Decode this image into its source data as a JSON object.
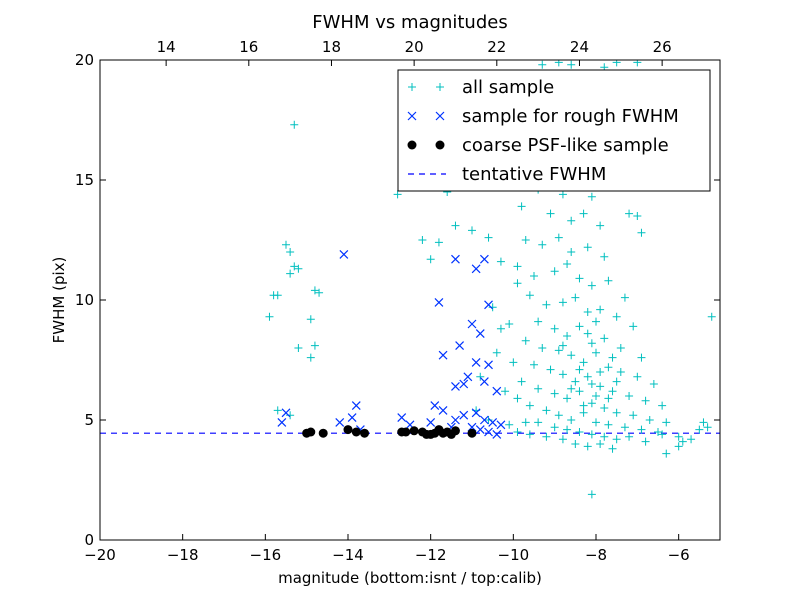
{
  "chart_data": {
    "type": "scatter",
    "title": "FWHM vs magnitudes",
    "xlabel": "magnitude (bottom:isnt / top:calib)",
    "ylabel": "FWHM (pix)",
    "xlim": [
      -20,
      -5
    ],
    "ylim": [
      0,
      20
    ],
    "top_xlim": [
      12.4,
      27.4
    ],
    "x_ticks": [
      -20,
      -18,
      -16,
      -14,
      -12,
      -10,
      -8,
      -6
    ],
    "y_ticks": [
      0,
      5,
      10,
      15,
      20
    ],
    "top_x_ticks": [
      14,
      16,
      18,
      20,
      22,
      24,
      26
    ],
    "grid": false,
    "legend_position": "top-right",
    "tentative_fwhm": 4.45,
    "series": [
      {
        "name": "all sample",
        "marker": "plus",
        "color": "#00bfbf",
        "points": [
          [
            -15.3,
            17.3
          ],
          [
            -15.5,
            12.3
          ],
          [
            -15.4,
            12.0
          ],
          [
            -15.3,
            11.4
          ],
          [
            -15.2,
            11.3
          ],
          [
            -15.4,
            11.1
          ],
          [
            -15.8,
            10.2
          ],
          [
            -15.7,
            10.2
          ],
          [
            -14.8,
            10.4
          ],
          [
            -14.7,
            10.3
          ],
          [
            -15.9,
            9.3
          ],
          [
            -14.9,
            9.2
          ],
          [
            -14.8,
            8.1
          ],
          [
            -15.2,
            8.0
          ],
          [
            -14.9,
            7.6
          ],
          [
            -15.7,
            5.4
          ],
          [
            -15.4,
            5.2
          ],
          [
            -12.7,
            16.2
          ],
          [
            -12.5,
            16.0
          ],
          [
            -11.9,
            15.8
          ],
          [
            -11.3,
            15.4
          ],
          [
            -11.6,
            14.5
          ],
          [
            -10.7,
            15.5
          ],
          [
            -12.8,
            14.4
          ],
          [
            -11.4,
            13.1
          ],
          [
            -12.2,
            12.5
          ],
          [
            -11.8,
            12.4
          ],
          [
            -11.0,
            12.9
          ],
          [
            -10.6,
            12.6
          ],
          [
            -12.0,
            11.7
          ],
          [
            -10.3,
            11.6
          ],
          [
            -10.5,
            9.7
          ],
          [
            -10.1,
            9.0
          ],
          [
            -10.4,
            7.8
          ],
          [
            -10.8,
            6.8
          ],
          [
            -10.2,
            6.2
          ],
          [
            -9.9,
            5.9
          ],
          [
            -10.9,
            5.4
          ],
          [
            -10.6,
            5.0
          ],
          [
            -10.1,
            4.8
          ],
          [
            -9.7,
            4.9
          ],
          [
            -9.3,
            19.8
          ],
          [
            -8.9,
            19.9
          ],
          [
            -8.6,
            19.8
          ],
          [
            -7.8,
            19.7
          ],
          [
            -7.5,
            19.9
          ],
          [
            -7.0,
            19.9
          ],
          [
            -9.0,
            18.7
          ],
          [
            -8.2,
            18.4
          ],
          [
            -9.2,
            17.7
          ],
          [
            -8.6,
            17.2
          ],
          [
            -7.7,
            17.1
          ],
          [
            -9.6,
            16.5
          ],
          [
            -8.9,
            16.3
          ],
          [
            -8.0,
            16.3
          ],
          [
            -9.2,
            15.6
          ],
          [
            -8.5,
            15.5
          ],
          [
            -7.8,
            15.2
          ],
          [
            -10.2,
            14.8
          ],
          [
            -9.4,
            14.6
          ],
          [
            -8.8,
            14.4
          ],
          [
            -8.1,
            14.3
          ],
          [
            -7.2,
            13.6
          ],
          [
            -7.0,
            13.5
          ],
          [
            -6.9,
            12.8
          ],
          [
            -9.8,
            13.9
          ],
          [
            -9.1,
            13.6
          ],
          [
            -8.6,
            13.3
          ],
          [
            -8.3,
            13.6
          ],
          [
            -7.9,
            13.1
          ],
          [
            -9.7,
            12.5
          ],
          [
            -9.3,
            12.3
          ],
          [
            -8.9,
            12.6
          ],
          [
            -8.6,
            12.0
          ],
          [
            -8.2,
            12.2
          ],
          [
            -7.8,
            11.8
          ],
          [
            -9.9,
            11.4
          ],
          [
            -9.5,
            11.0
          ],
          [
            -9.0,
            11.2
          ],
          [
            -8.7,
            11.5
          ],
          [
            -8.4,
            10.9
          ],
          [
            -8.1,
            10.6
          ],
          [
            -7.7,
            10.8
          ],
          [
            -7.3,
            10.1
          ],
          [
            -9.6,
            10.2
          ],
          [
            -9.2,
            9.8
          ],
          [
            -8.8,
            9.9
          ],
          [
            -8.5,
            10.1
          ],
          [
            -8.2,
            9.5
          ],
          [
            -7.9,
            9.6
          ],
          [
            -7.5,
            9.3
          ],
          [
            -7.1,
            8.9
          ],
          [
            -9.4,
            9.1
          ],
          [
            -9.0,
            8.8
          ],
          [
            -8.7,
            8.5
          ],
          [
            -8.4,
            8.9
          ],
          [
            -8.1,
            8.2
          ],
          [
            -7.8,
            8.4
          ],
          [
            -7.4,
            8.0
          ],
          [
            -6.9,
            7.6
          ],
          [
            -9.7,
            8.3
          ],
          [
            -9.3,
            8.0
          ],
          [
            -8.9,
            7.9
          ],
          [
            -8.6,
            7.7
          ],
          [
            -8.3,
            7.4
          ],
          [
            -8.0,
            7.8
          ],
          [
            -7.7,
            7.2
          ],
          [
            -7.4,
            7.0
          ],
          [
            -7.0,
            6.8
          ],
          [
            -6.6,
            6.5
          ],
          [
            -9.5,
            7.3
          ],
          [
            -9.1,
            7.1
          ],
          [
            -8.8,
            6.9
          ],
          [
            -8.5,
            6.6
          ],
          [
            -8.2,
            6.8
          ],
          [
            -7.9,
            6.4
          ],
          [
            -7.6,
            6.2
          ],
          [
            -7.2,
            6.0
          ],
          [
            -6.8,
            5.8
          ],
          [
            -6.4,
            5.6
          ],
          [
            -9.8,
            6.6
          ],
          [
            -9.4,
            6.3
          ],
          [
            -9.0,
            6.1
          ],
          [
            -8.7,
            5.9
          ],
          [
            -8.4,
            6.2
          ],
          [
            -8.1,
            5.7
          ],
          [
            -7.8,
            5.5
          ],
          [
            -7.5,
            5.3
          ],
          [
            -7.1,
            5.2
          ],
          [
            -6.7,
            5.0
          ],
          [
            -6.3,
            4.9
          ],
          [
            -9.6,
            5.6
          ],
          [
            -9.2,
            5.4
          ],
          [
            -8.9,
            5.2
          ],
          [
            -8.6,
            5.0
          ],
          [
            -8.3,
            5.3
          ],
          [
            -8.0,
            4.9
          ],
          [
            -7.7,
            4.8
          ],
          [
            -7.3,
            4.7
          ],
          [
            -6.9,
            4.6
          ],
          [
            -6.5,
            4.5
          ],
          [
            -9.4,
            4.9
          ],
          [
            -9.0,
            4.7
          ],
          [
            -8.7,
            4.6
          ],
          [
            -8.4,
            4.5
          ],
          [
            -8.1,
            4.4
          ],
          [
            -7.8,
            4.3
          ],
          [
            -7.5,
            4.2
          ],
          [
            -7.2,
            4.3
          ],
          [
            -6.8,
            4.1
          ],
          [
            -6.4,
            4.4
          ],
          [
            -6.0,
            4.3
          ],
          [
            -5.7,
            4.2
          ],
          [
            -5.5,
            4.6
          ],
          [
            -9.9,
            4.5
          ],
          [
            -9.6,
            4.4
          ],
          [
            -9.2,
            4.3
          ],
          [
            -8.8,
            4.2
          ],
          [
            -8.5,
            4.0
          ],
          [
            -8.2,
            3.9
          ],
          [
            -7.9,
            4.0
          ],
          [
            -7.6,
            3.8
          ],
          [
            -6.3,
            3.6
          ],
          [
            -6.0,
            3.9
          ],
          [
            -5.9,
            4.1
          ],
          [
            -5.4,
            4.9
          ],
          [
            -5.3,
            4.7
          ],
          [
            -5.2,
            9.3
          ],
          [
            -8.1,
            1.9
          ],
          [
            -10.3,
            8.8
          ],
          [
            -10.0,
            7.4
          ],
          [
            -9.9,
            10.7
          ],
          [
            -8.0,
            6.0
          ],
          [
            -8.1,
            6.5
          ],
          [
            -7.9,
            7.0
          ],
          [
            -8.3,
            5.6
          ],
          [
            -7.7,
            5.9
          ],
          [
            -8.4,
            7.1
          ],
          [
            -8.6,
            6.3
          ],
          [
            -7.5,
            6.6
          ],
          [
            -8.2,
            8.6
          ],
          [
            -8.0,
            9.1
          ],
          [
            -7.6,
            7.6
          ],
          [
            -8.8,
            8.1
          ]
        ]
      },
      {
        "name": "sample for rough FWHM",
        "marker": "x",
        "color": "#0033ff",
        "points": [
          [
            -14.1,
            11.9
          ],
          [
            -11.8,
            9.9
          ],
          [
            -11.4,
            11.7
          ],
          [
            -10.9,
            11.3
          ],
          [
            -10.7,
            11.7
          ],
          [
            -10.6,
            9.8
          ],
          [
            -11.0,
            9.0
          ],
          [
            -10.8,
            8.6
          ],
          [
            -11.3,
            8.1
          ],
          [
            -11.7,
            7.7
          ],
          [
            -10.9,
            7.4
          ],
          [
            -10.6,
            7.3
          ],
          [
            -10.7,
            6.6
          ],
          [
            -11.1,
            6.8
          ],
          [
            -11.2,
            6.5
          ],
          [
            -11.4,
            6.4
          ],
          [
            -10.4,
            6.2
          ],
          [
            -13.8,
            5.6
          ],
          [
            -13.9,
            5.1
          ],
          [
            -14.2,
            4.9
          ],
          [
            -15.5,
            5.3
          ],
          [
            -15.6,
            4.9
          ],
          [
            -12.7,
            5.1
          ],
          [
            -11.9,
            5.6
          ],
          [
            -11.7,
            5.4
          ],
          [
            -11.2,
            5.2
          ],
          [
            -11.4,
            5.0
          ],
          [
            -10.9,
            5.3
          ],
          [
            -10.7,
            5.0
          ],
          [
            -10.5,
            4.9
          ],
          [
            -10.3,
            4.8
          ],
          [
            -10.8,
            4.6
          ],
          [
            -10.6,
            4.5
          ],
          [
            -10.4,
            4.4
          ],
          [
            -11.0,
            4.7
          ],
          [
            -12.5,
            4.8
          ],
          [
            -12.0,
            4.9
          ],
          [
            -11.5,
            4.7
          ],
          [
            -13.7,
            4.6
          ]
        ]
      },
      {
        "name": "coarse PSF-like sample",
        "marker": "circle",
        "color": "#000000",
        "points": [
          [
            -15.0,
            4.45
          ],
          [
            -14.9,
            4.5
          ],
          [
            -14.6,
            4.45
          ],
          [
            -14.0,
            4.6
          ],
          [
            -13.8,
            4.5
          ],
          [
            -13.6,
            4.45
          ],
          [
            -12.7,
            4.5
          ],
          [
            -12.6,
            4.5
          ],
          [
            -12.4,
            4.55
          ],
          [
            -12.2,
            4.5
          ],
          [
            -12.1,
            4.4
          ],
          [
            -12.0,
            4.4
          ],
          [
            -11.9,
            4.45
          ],
          [
            -11.8,
            4.6
          ],
          [
            -11.7,
            4.45
          ],
          [
            -11.6,
            4.5
          ],
          [
            -11.5,
            4.4
          ],
          [
            -11.4,
            4.55
          ],
          [
            -11.0,
            4.45
          ]
        ]
      }
    ],
    "reference_line": {
      "name": "tentative FWHM",
      "y": 4.45,
      "style": "dashed",
      "color": "#0000ff"
    }
  }
}
